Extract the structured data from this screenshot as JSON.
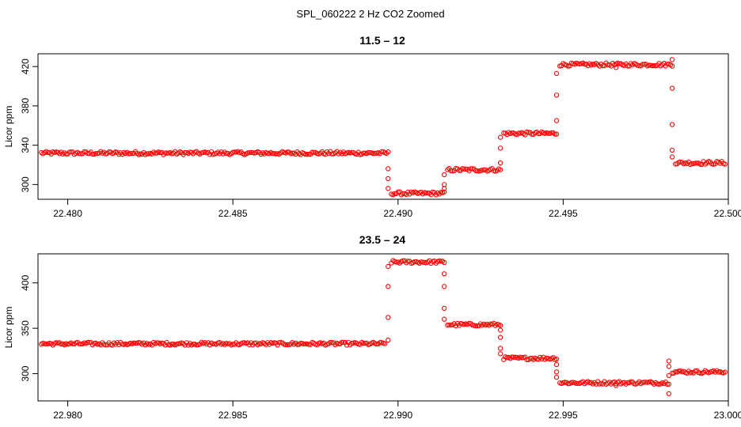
{
  "figure": {
    "suptitle": "SPL_060222  2 Hz CO2 Zoomed"
  },
  "chart_data": [
    {
      "type": "scatter",
      "title": "11.5 – 12",
      "xlabel": "",
      "ylabel": "Licor ppm",
      "xlim": [
        22.4791,
        22.5
      ],
      "ylim": [
        285,
        433
      ],
      "xticks": [
        22.48,
        22.485,
        22.49,
        22.495,
        22.5
      ],
      "xtick_labels": [
        "22.480",
        "22.485",
        "22.490",
        "22.495",
        "22.500"
      ],
      "yticks": [
        300,
        340,
        380,
        420
      ],
      "ytick_labels": [
        "300",
        "340",
        "380",
        "420"
      ],
      "grid": false,
      "marker_color": "#ff0000",
      "segments": [
        {
          "x_start": 22.4792,
          "x_end": 22.4897,
          "y": 332
        },
        {
          "x_start": 22.4898,
          "x_end": 22.4914,
          "y": 291
        },
        {
          "x_start": 22.4915,
          "x_end": 22.4931,
          "y": 315
        },
        {
          "x_start": 22.4932,
          "x_end": 22.4948,
          "y": 352
        },
        {
          "x_start": 22.4949,
          "x_end": 22.4983,
          "y": 422
        },
        {
          "x_start": 22.4984,
          "x_end": 22.4999,
          "y": 322
        }
      ],
      "transitions": [
        {
          "x": 22.4897,
          "y": [
            316,
            306,
            296
          ]
        },
        {
          "x": 22.4914,
          "y": [
            296,
            300,
            310
          ]
        },
        {
          "x": 22.4931,
          "y": [
            322,
            337,
            348
          ]
        },
        {
          "x": 22.4948,
          "y": [
            365,
            391,
            413
          ]
        },
        {
          "x": 22.4983,
          "y": [
            427,
            398,
            361,
            335,
            328
          ]
        }
      ],
      "outliers": [
        {
          "x": 22.4966,
          "y": 419
        }
      ]
    },
    {
      "type": "scatter",
      "title": "23.5 – 24",
      "xlabel": "",
      "ylabel": "Licor ppm",
      "xlim": [
        22.9791,
        23.0
      ],
      "ylim": [
        270,
        432
      ],
      "xticks": [
        22.98,
        22.985,
        22.99,
        22.995,
        23.0
      ],
      "xtick_labels": [
        "22.980",
        "22.985",
        "22.990",
        "22.995",
        "23.000"
      ],
      "yticks": [
        300,
        350,
        400
      ],
      "ytick_labels": [
        "300",
        "350",
        "400"
      ],
      "grid": false,
      "marker_color": "#ff0000",
      "segments": [
        {
          "x_start": 22.9792,
          "x_end": 22.9896,
          "y": 333
        },
        {
          "x_start": 22.9898,
          "x_end": 22.9914,
          "y": 423
        },
        {
          "x_start": 22.9915,
          "x_end": 22.9931,
          "y": 354
        },
        {
          "x_start": 22.9932,
          "x_end": 22.9948,
          "y": 317
        },
        {
          "x_start": 22.9949,
          "x_end": 22.9982,
          "y": 290
        },
        {
          "x_start": 22.9983,
          "x_end": 22.9999,
          "y": 302
        }
      ],
      "transitions": [
        {
          "x": 22.9897,
          "y": [
            337,
            362,
            396,
            418
          ]
        },
        {
          "x": 22.9914,
          "y": [
            410,
            396,
            372,
            360
          ]
        },
        {
          "x": 22.9931,
          "y": [
            348,
            340,
            328,
            322
          ]
        },
        {
          "x": 22.9948,
          "y": [
            310,
            302,
            296
          ]
        },
        {
          "x": 22.9982,
          "y": [
            278,
            298,
            314,
            308
          ]
        }
      ],
      "outliers": [
        {
          "x": 22.9966,
          "y": 287
        }
      ]
    }
  ]
}
